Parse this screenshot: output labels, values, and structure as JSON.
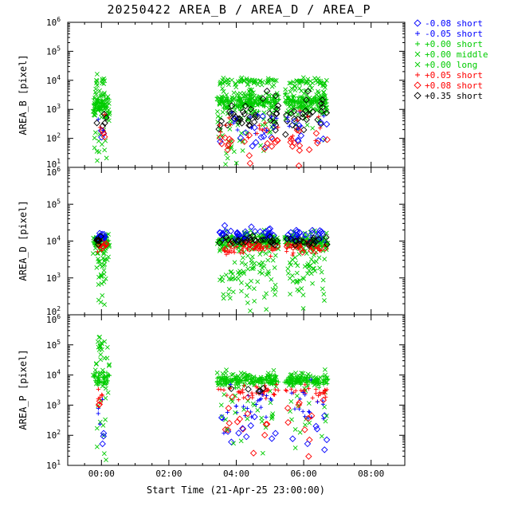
{
  "colors": {
    "blue": "#0000ff",
    "green": "#00cc00",
    "red": "#ff0000",
    "black": "#000000",
    "background": "#ffffff"
  },
  "chart_data": {
    "type": "scatter",
    "title": "20250422 AREA_B / AREA_D / AREA_P",
    "xlabel": "Start Time (21-Apr-25 23:00:00)",
    "x_axis": {
      "min": 0,
      "max": 10,
      "unit": "hours since 23:00",
      "minor_step": 0.5,
      "major_ticks": [
        {
          "t": 1,
          "label": "00:00"
        },
        {
          "t": 3,
          "label": "02:00"
        },
        {
          "t": 5,
          "label": "04:00"
        },
        {
          "t": 7,
          "label": "06:00"
        },
        {
          "t": 9,
          "label": "08:00"
        }
      ]
    },
    "series": [
      {
        "label": "-0.08 short",
        "color": "#0000ff",
        "symbol": "diamond"
      },
      {
        "label": "-0.05 short",
        "color": "#0000ff",
        "symbol": "plus"
      },
      {
        "label": "+0.00 short",
        "color": "#00cc00",
        "symbol": "plus"
      },
      {
        "label": "+0.00 middle",
        "color": "#00cc00",
        "symbol": "x"
      },
      {
        "label": "+0.00 long",
        "color": "#00cc00",
        "symbol": "x"
      },
      {
        "label": "+0.05 short",
        "color": "#ff0000",
        "symbol": "plus"
      },
      {
        "label": "+0.08 short",
        "color": "#ff0000",
        "symbol": "diamond"
      },
      {
        "label": "+0.35 short",
        "color": "#000000",
        "symbol": "diamond"
      }
    ],
    "legend_position": "top-right",
    "grid": false,
    "y_scale": "log",
    "panels": [
      {
        "name": "AREA_B",
        "ylabel": "AREA_B [pixel]",
        "ymin_exp": 1,
        "ymax_exp": 6,
        "y_tick_labels": [
          "10^6",
          "10^5",
          "10^4",
          "10^3",
          "10^2",
          "10^1"
        ],
        "clusters": [
          [
            2,
            0.75,
            1.25,
            3.15,
            0.12,
            45
          ],
          [
            3,
            0.75,
            1.25,
            3.2,
            0.3,
            50
          ],
          [
            3,
            0.85,
            1.15,
            3.95,
            0.12,
            10
          ],
          [
            4,
            0.75,
            1.25,
            2.4,
            0.5,
            12
          ],
          [
            4,
            0.85,
            1.15,
            1.7,
            0.3,
            6
          ],
          [
            7,
            0.85,
            1.15,
            2.6,
            0.3,
            5
          ],
          [
            0,
            0.9,
            1.1,
            1.9,
            0.3,
            3
          ],
          [
            6,
            0.9,
            1.1,
            2.1,
            0.3,
            3
          ],
          [
            1,
            0.9,
            1.1,
            2.5,
            0.2,
            2
          ],
          [
            5,
            0.9,
            1.1,
            2.6,
            0.2,
            2
          ],
          [
            2,
            4.42,
            6.27,
            3.27,
            0.1,
            140
          ],
          [
            3,
            4.42,
            6.27,
            3.3,
            0.3,
            110
          ],
          [
            3,
            4.5,
            6.2,
            3.95,
            0.1,
            45
          ],
          [
            4,
            4.42,
            6.27,
            2.7,
            0.45,
            40
          ],
          [
            4,
            4.5,
            6.2,
            1.6,
            0.35,
            14
          ],
          [
            7,
            4.45,
            6.25,
            2.8,
            0.3,
            40
          ],
          [
            0,
            4.5,
            6.2,
            2.2,
            0.35,
            14
          ],
          [
            6,
            4.5,
            6.25,
            1.8,
            0.25,
            20
          ],
          [
            1,
            4.5,
            6.2,
            2.5,
            0.3,
            10
          ],
          [
            5,
            4.5,
            6.25,
            2.35,
            0.3,
            12
          ],
          [
            2,
            6.43,
            7.73,
            3.27,
            0.1,
            100
          ],
          [
            3,
            6.43,
            7.73,
            3.3,
            0.3,
            75
          ],
          [
            3,
            6.5,
            7.7,
            3.95,
            0.1,
            30
          ],
          [
            4,
            6.43,
            7.73,
            2.7,
            0.45,
            26
          ],
          [
            7,
            6.45,
            7.7,
            2.8,
            0.3,
            26
          ],
          [
            0,
            6.5,
            7.7,
            2.2,
            0.35,
            9
          ],
          [
            6,
            6.5,
            7.7,
            1.8,
            0.25,
            13
          ],
          [
            1,
            6.5,
            7.7,
            2.5,
            0.3,
            7
          ],
          [
            5,
            6.5,
            7.7,
            2.35,
            0.3,
            8
          ]
        ]
      },
      {
        "name": "AREA_D",
        "ylabel": "AREA_D [pixel]",
        "ymin_exp": 2,
        "ymax_exp": 6,
        "y_tick_labels": [
          "10^6",
          "10^5",
          "10^4",
          "10^3",
          "10^2"
        ],
        "clusters": [
          [
            2,
            0.75,
            1.25,
            4.0,
            0.06,
            45
          ],
          [
            3,
            0.75,
            1.25,
            3.9,
            0.2,
            35
          ],
          [
            3,
            0.85,
            1.15,
            3.35,
            0.3,
            14
          ],
          [
            4,
            0.85,
            1.15,
            3.1,
            0.4,
            10
          ],
          [
            4,
            0.95,
            1.1,
            2.35,
            0.15,
            3
          ],
          [
            0,
            0.85,
            1.15,
            4.15,
            0.06,
            10
          ],
          [
            1,
            0.85,
            1.15,
            4.05,
            0.06,
            8
          ],
          [
            5,
            0.85,
            1.15,
            3.85,
            0.07,
            9
          ],
          [
            6,
            0.85,
            1.15,
            3.9,
            0.07,
            6
          ],
          [
            7,
            0.85,
            1.15,
            4.0,
            0.05,
            8
          ],
          [
            2,
            4.42,
            6.27,
            4.0,
            0.07,
            140
          ],
          [
            3,
            4.42,
            6.27,
            3.95,
            0.15,
            90
          ],
          [
            3,
            4.5,
            6.2,
            3.4,
            0.35,
            45
          ],
          [
            4,
            4.5,
            6.25,
            3.1,
            0.4,
            30
          ],
          [
            4,
            4.6,
            6.2,
            2.6,
            0.25,
            8
          ],
          [
            0,
            4.45,
            6.25,
            4.2,
            0.07,
            30
          ],
          [
            1,
            4.5,
            6.2,
            4.07,
            0.07,
            18
          ],
          [
            5,
            4.45,
            6.25,
            3.8,
            0.09,
            32
          ],
          [
            6,
            4.5,
            6.25,
            3.85,
            0.08,
            18
          ],
          [
            7,
            4.45,
            6.25,
            4.0,
            0.06,
            28
          ],
          [
            2,
            6.43,
            7.73,
            4.0,
            0.07,
            100
          ],
          [
            3,
            6.43,
            7.73,
            3.95,
            0.15,
            65
          ],
          [
            3,
            6.5,
            7.7,
            3.4,
            0.35,
            30
          ],
          [
            4,
            6.5,
            7.7,
            3.0,
            0.4,
            22
          ],
          [
            4,
            6.6,
            7.7,
            2.5,
            0.25,
            6
          ],
          [
            0,
            6.45,
            7.7,
            4.2,
            0.07,
            20
          ],
          [
            1,
            6.5,
            7.7,
            4.07,
            0.07,
            13
          ],
          [
            5,
            6.45,
            7.7,
            3.8,
            0.09,
            22
          ],
          [
            6,
            6.5,
            7.7,
            3.85,
            0.08,
            13
          ],
          [
            7,
            6.45,
            7.7,
            4.0,
            0.06,
            20
          ]
        ]
      },
      {
        "name": "AREA_P",
        "ylabel": "AREA_P [pixel]",
        "ymin_exp": 1,
        "ymax_exp": 6,
        "y_tick_labels": [
          "10^6",
          "10^5",
          "10^4",
          "10^3",
          "10^2",
          "10^1"
        ],
        "clusters": [
          [
            2,
            0.75,
            1.25,
            3.85,
            0.1,
            40
          ],
          [
            3,
            0.75,
            1.25,
            4.2,
            0.4,
            25
          ],
          [
            3,
            0.85,
            1.15,
            5.05,
            0.15,
            8
          ],
          [
            3,
            0.9,
            1.1,
            5.2,
            0.12,
            4
          ],
          [
            4,
            0.85,
            1.15,
            2.4,
            0.7,
            12
          ],
          [
            5,
            0.9,
            1.1,
            3.4,
            0.15,
            5
          ],
          [
            1,
            0.9,
            1.1,
            2.8,
            0.3,
            4
          ],
          [
            0,
            0.95,
            1.1,
            1.7,
            0.3,
            3
          ],
          [
            6,
            0.9,
            1.1,
            3.0,
            0.2,
            3
          ],
          [
            2,
            4.42,
            6.27,
            3.8,
            0.07,
            140
          ],
          [
            3,
            4.42,
            6.27,
            3.87,
            0.12,
            55
          ],
          [
            3,
            4.5,
            6.2,
            3.1,
            0.45,
            22
          ],
          [
            5,
            4.45,
            6.25,
            3.45,
            0.12,
            38
          ],
          [
            1,
            4.5,
            6.25,
            2.9,
            0.35,
            24
          ],
          [
            6,
            4.5,
            6.25,
            2.4,
            0.5,
            14
          ],
          [
            0,
            4.55,
            6.2,
            1.9,
            0.5,
            10
          ],
          [
            7,
            4.6,
            6.2,
            3.6,
            0.15,
            5
          ],
          [
            4,
            4.5,
            6.2,
            2.0,
            0.4,
            8
          ],
          [
            2,
            6.43,
            7.73,
            3.8,
            0.07,
            100
          ],
          [
            3,
            6.43,
            7.73,
            3.87,
            0.12,
            40
          ],
          [
            3,
            6.5,
            7.7,
            3.1,
            0.45,
            16
          ],
          [
            5,
            6.45,
            7.7,
            3.45,
            0.12,
            26
          ],
          [
            1,
            6.5,
            7.7,
            2.9,
            0.35,
            17
          ],
          [
            6,
            6.5,
            7.7,
            2.4,
            0.5,
            10
          ],
          [
            0,
            6.55,
            7.7,
            1.9,
            0.5,
            7
          ],
          [
            4,
            6.5,
            7.7,
            2.0,
            0.4,
            6
          ]
        ]
      }
    ]
  }
}
